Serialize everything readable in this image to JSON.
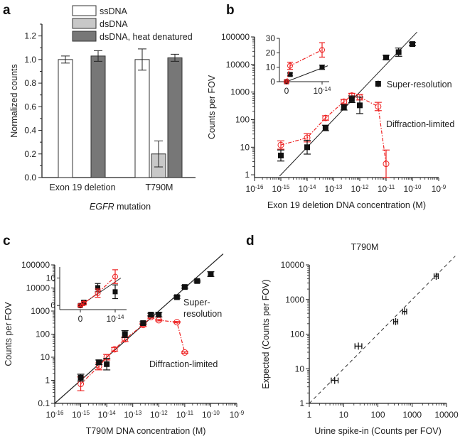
{
  "panel_labels": [
    "a",
    "b",
    "c",
    "d"
  ],
  "chart_data": [
    {
      "id": "a",
      "type": "bar",
      "title": "",
      "xlabel": "EGFR mutation",
      "xlabel_italic_part": "EGFR",
      "ylabel": "Normalized counts",
      "ylim": [
        0,
        1.3
      ],
      "yticks": [
        "0.0",
        "0.2",
        "0.4",
        "0.6",
        "0.8",
        "1.0",
        "1.2"
      ],
      "categories": [
        "Exon 19 deletion",
        "T790M"
      ],
      "legend_position": "top",
      "series": [
        {
          "name": "ssDNA",
          "color": "#ffffff",
          "values": [
            1.0,
            1.0
          ],
          "errors": [
            0.03,
            0.09
          ]
        },
        {
          "name": "dsDNA",
          "color": "#c8c8c8",
          "values": [
            0.0,
            0.2
          ],
          "errors": [
            0.0,
            0.11
          ]
        },
        {
          "name": "dsDNA, heat denatured",
          "color": "#777777",
          "values": [
            1.03,
            1.015
          ],
          "errors": [
            0.045,
            0.03
          ]
        }
      ]
    },
    {
      "id": "b",
      "type": "scatter",
      "xlabel": "Exon 19 deletion DNA concentration (M)",
      "ylabel": "Counts per FOV",
      "xscale": "log",
      "yscale": "log",
      "xlim": [
        1e-16,
        1e-09
      ],
      "ylim": [
        0.8,
        100000
      ],
      "xticks": [
        "10^-16",
        "10^-15",
        "10^-14",
        "10^-13",
        "10^-12",
        "10^-11",
        "10^-10",
        "10^-9"
      ],
      "yticks": [
        "1",
        "10",
        "100",
        "1000",
        "10000",
        "100000"
      ],
      "fit_line": {
        "slope_loglog": 1,
        "intercept_at_1e-15": 1
      },
      "series": [
        {
          "name": "Super-resolution",
          "color": "#111111",
          "marker": "square",
          "x": [
            1e-15,
            1e-14,
            5e-14,
            2.5e-13,
            5e-13,
            1e-12,
            1e-11,
            3e-11,
            1e-10
          ],
          "y": [
            5,
            10,
            50,
            280,
            550,
            330,
            18000,
            28000,
            55000
          ],
          "err": [
            0.2,
            0.25,
            0.1,
            0.1,
            0.12,
            0.3,
            0.08,
            0.15,
            0.06
          ]
        },
        {
          "name": "Diffraction-limited",
          "color": "#ee2222",
          "marker": "circle-open",
          "x": [
            1e-15,
            1e-14,
            5e-14,
            2.5e-13,
            5e-13,
            1e-12,
            5e-12,
            1e-11
          ],
          "y": [
            12,
            22,
            115,
            450,
            750,
            650,
            300,
            2.5
          ],
          "err": [
            0.15,
            0.15,
            0.08,
            0.08,
            0.08,
            0.1,
            0.15,
            0.5
          ]
        }
      ],
      "inset": {
        "xticks": [
          "0",
          "10^-14"
        ],
        "yticks": [
          "0",
          "10",
          "20",
          "30"
        ],
        "ylim": [
          0,
          30
        ],
        "series": [
          {
            "name": "Super-resolution",
            "x": [
              0,
              1e-15,
              1e-14
            ],
            "y": [
              0,
              5,
              10
            ],
            "err": [
              0.5,
              1,
              1.5
            ]
          },
          {
            "name": "Diffraction-limited",
            "x": [
              0,
              1e-15,
              1e-14
            ],
            "y": [
              0,
              11,
              22
            ],
            "err": [
              0.5,
              2.5,
              5
            ]
          }
        ]
      }
    },
    {
      "id": "c",
      "type": "scatter",
      "xlabel": "T790M DNA concentration (M)",
      "ylabel": "Counts per FOV",
      "xscale": "log",
      "yscale": "log",
      "xlim": [
        1e-16,
        1e-09
      ],
      "ylim": [
        0.1,
        100000
      ],
      "xticks": [
        "10^-16",
        "10^-15",
        "10^-14",
        "10^-13",
        "10^-12",
        "10^-11",
        "10^-10",
        "10^-9"
      ],
      "yticks": [
        "0.1",
        "1",
        "10",
        "100",
        "1000",
        "10000",
        "100000"
      ],
      "fit_line": {
        "slope_loglog": 1,
        "intercept_at_1e-15": 1
      },
      "labels": {
        "super": [
          "Super-",
          "resolution"
        ],
        "diffraction": "Diffraction-limited"
      },
      "series": [
        {
          "name": "Super-resolution",
          "color": "#111111",
          "marker": "square",
          "x": [
            1e-15,
            5e-15,
            1e-14,
            5e-14,
            2.5e-13,
            5e-13,
            1e-12,
            5e-12,
            1e-11,
            3e-11,
            1e-10
          ],
          "y": [
            1.3,
            6,
            5,
            100,
            300,
            700,
            700,
            4000,
            11000,
            20000,
            40000
          ],
          "err": [
            0.15,
            0.1,
            0.25,
            0.15,
            0.06,
            0.06,
            0.1,
            0.05,
            0.05,
            0.04,
            0.1
          ]
        },
        {
          "name": "Diffraction-limited",
          "color": "#ee2222",
          "marker": "circle-open",
          "x": [
            1e-15,
            5e-15,
            1e-14,
            2e-14,
            5e-14,
            2.5e-13,
            5e-13,
            1e-12,
            5e-12,
            1e-11
          ],
          "y": [
            0.7,
            4,
            10,
            22,
            60,
            250,
            550,
            400,
            330,
            16
          ],
          "err": [
            0.3,
            0.15,
            0.12,
            0.08,
            0.1,
            0.07,
            0.05,
            0.03,
            0.03,
            0.03
          ]
        }
      ],
      "inset": {
        "xticks": [
          "0",
          "10^-14"
        ],
        "yticks": [
          "0",
          "10"
        ],
        "ylim": [
          -1.5,
          14
        ],
        "series": [
          {
            "name": "Super-resolution",
            "x": [
              0,
              1e-15,
              5e-15,
              1e-14
            ],
            "y": [
              0,
              1.2,
              6.5,
              5
            ],
            "err": [
              0.3,
              0.6,
              1.5,
              2.5
            ]
          },
          {
            "name": "Diffraction-limited",
            "x": [
              0,
              1e-15,
              5e-15,
              1e-14
            ],
            "y": [
              0,
              0.8,
              4.5,
              10.5
            ],
            "err": [
              0.3,
              0.6,
              1.5,
              2.5
            ]
          }
        ]
      }
    },
    {
      "id": "d",
      "type": "scatter",
      "title": "T790M",
      "xlabel": "Urine spike-in (Counts per FOV)",
      "ylabel": "Expected (Counts per FOV)",
      "xscale": "log",
      "yscale": "log",
      "xlim": [
        1,
        10000
      ],
      "ylim": [
        1,
        10000
      ],
      "xticks": [
        "1",
        "10",
        "100",
        "1000",
        "10000"
      ],
      "yticks": [
        "1",
        "10",
        "100",
        "1000",
        "10000"
      ],
      "fit_line": {
        "type": "dashed",
        "equation": "y = x"
      },
      "series": [
        {
          "name": "T790M",
          "color": "#111111",
          "x": [
            5.5,
            27,
            330,
            600,
            5000
          ],
          "y": [
            4.6,
            45,
            230,
            450,
            4700
          ],
          "xerr_log": [
            0.1,
            0.1,
            0.06,
            0.06,
            0.06
          ]
        }
      ]
    }
  ]
}
